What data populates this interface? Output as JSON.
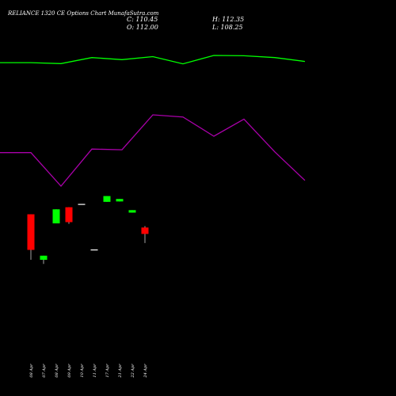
{
  "header": {
    "title": "RELIANCE 1320  CE Options  Chart MunafaSutra.com",
    "close": "C: 110.45",
    "open": "O: 112.00",
    "high": "H: 112.35",
    "low": "L: 108.25"
  },
  "chart_data": {
    "type": "candlestick",
    "title": "RELIANCE 1320  CE Options  Chart MunafaSutra.com",
    "x_tick_labels": [
      "08 Apr",
      "07 Apr",
      "08 Apr",
      "09 Apr",
      "10 Apr",
      "11 Apr",
      "17 Apr",
      "21 Apr",
      "22 Apr",
      "24 Apr"
    ],
    "y_range": [
      100,
      122
    ],
    "candles": [
      {
        "date": "08 Apr",
        "open": 115.2,
        "close": 106.6,
        "high": 115.2,
        "low": 104.2,
        "color": "#ff0000"
      },
      {
        "date": "07 Apr",
        "open": 105.2,
        "close": 104.2,
        "high": 105.2,
        "low": 103.2,
        "color": "#00ff00"
      },
      {
        "date": "08 Apr",
        "open": 116.4,
        "close": 113.0,
        "high": 116.4,
        "low": 113.0,
        "color": "#00ff00"
      },
      {
        "date": "09 Apr",
        "open": 116.9,
        "close": 113.3,
        "high": 116.9,
        "low": 112.9,
        "color": "#ff0000"
      },
      {
        "date": "10 Apr",
        "open": 117.7,
        "close": 117.7,
        "high": 117.7,
        "low": 117.7,
        "color": "#ffffff"
      },
      {
        "date": "11 Apr",
        "open": 106.7,
        "close": 106.7,
        "high": 106.7,
        "low": 106.7,
        "color": "#ffffff"
      },
      {
        "date": "17 Apr",
        "open": 119.6,
        "close": 118.2,
        "high": 119.6,
        "low": 118.2,
        "color": "#00ff00"
      },
      {
        "date": "21 Apr",
        "open": 118.9,
        "close": 118.3,
        "high": 118.9,
        "low": 118.3,
        "color": "#00ff00"
      },
      {
        "date": "22 Apr",
        "open": 116.2,
        "close": 115.6,
        "high": 116.2,
        "low": 115.6,
        "color": "#00ff00"
      },
      {
        "date": "24 Apr",
        "open": 112.0,
        "close": 110.45,
        "high": 112.35,
        "low": 108.25,
        "color": "#ff0000"
      }
    ],
    "lines": [
      {
        "color": "#00ff00",
        "values": [
          0.76,
          0.76,
          0.73,
          0.93,
          0.86,
          0.96,
          0.72,
          1.0,
          0.99,
          0.93,
          0.8
        ]
      },
      {
        "color": "#aa00aa",
        "values": [
          0.47,
          0.47,
          0.0,
          0.52,
          0.51,
          1.0,
          0.97,
          0.7,
          0.94,
          0.48,
          0.08
        ]
      }
    ]
  }
}
